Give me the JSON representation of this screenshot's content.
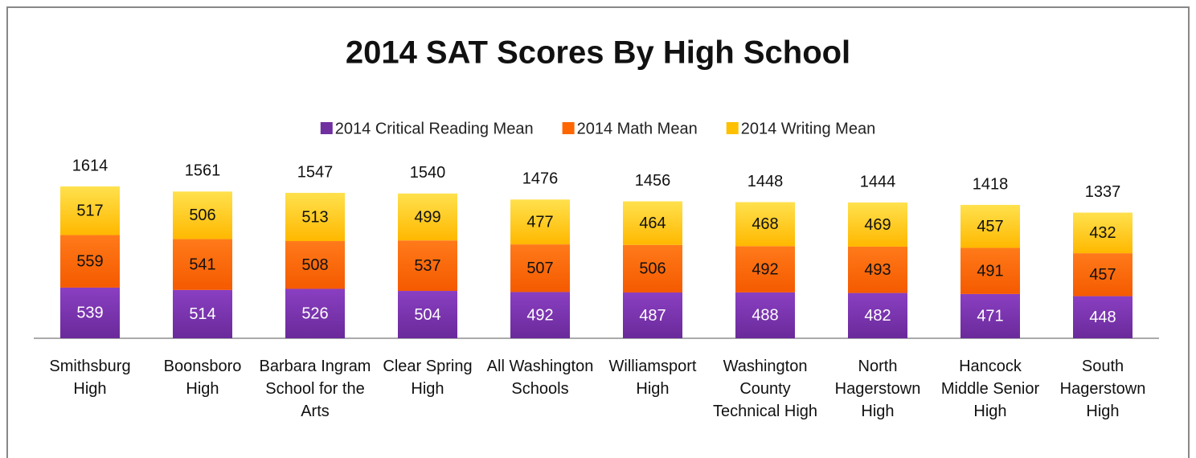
{
  "chart_data": {
    "type": "stacked_bar",
    "title": "2014 SAT Scores By High School",
    "categories": [
      "Smithsburg High",
      "Boonsboro High",
      "Barbara Ingram School for the Arts",
      "Clear Spring High",
      "All Washington Schools",
      "Williamsport High",
      "Washington County Technical High",
      "North Hagerstown High",
      "Hancock Middle Senior High",
      "South Hagerstown High"
    ],
    "series": [
      {
        "name": "2014 Critical Reading Mean",
        "color": "#7030a0",
        "values": [
          539,
          514,
          526,
          504,
          492,
          487,
          488,
          482,
          471,
          448
        ]
      },
      {
        "name": "2014 Math Mean",
        "color": "#ff6600",
        "values": [
          559,
          541,
          508,
          537,
          507,
          506,
          492,
          493,
          491,
          457
        ]
      },
      {
        "name": "2014 Writing Mean",
        "color": "#ffc000",
        "values": [
          517,
          506,
          513,
          499,
          477,
          464,
          468,
          469,
          457,
          432
        ]
      }
    ],
    "totals": [
      1614,
      1561,
      1547,
      1540,
      1476,
      1456,
      1448,
      1444,
      1418,
      1337
    ],
    "ylim": [
      0,
      2000
    ],
    "legend": "top"
  }
}
